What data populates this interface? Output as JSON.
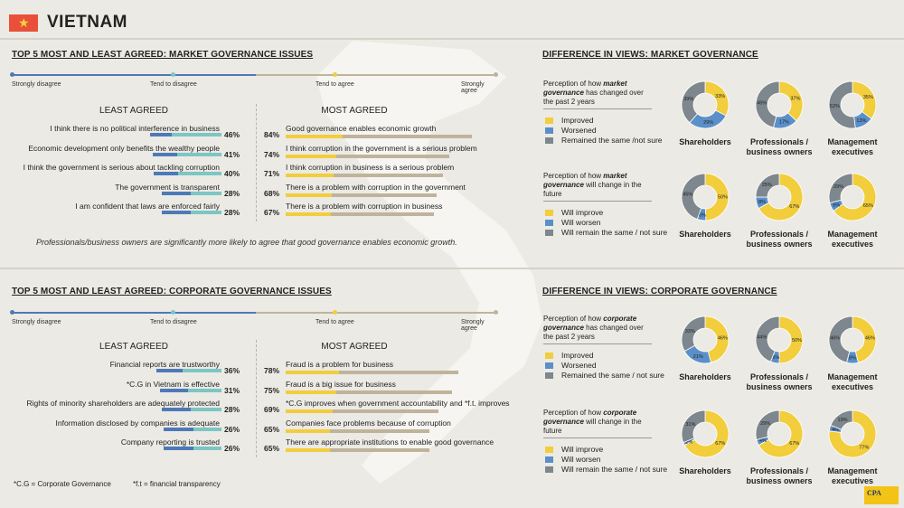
{
  "country": "VIETNAM",
  "colors": {
    "yellow": "#f2cd3c",
    "blue": "#5b8fc9",
    "grey": "#7d878d",
    "bar_teal": "#7cc6c4",
    "bar_tan": "#bfb49b",
    "bar_blue": "#4e79b8",
    "flag": "#e8503a"
  },
  "scale": [
    "Strongly disagree",
    "Tend to disagree",
    "Tend to agree",
    "Strongly agree"
  ],
  "market": {
    "title": "TOP 5 MOST AND LEAST AGREED: MARKET GOVERNANCE ISSUES",
    "least_head": "LEAST AGREED",
    "most_head": "MOST AGREED",
    "least": [
      {
        "label": "I think there is no political interference in business",
        "pct": "46%"
      },
      {
        "label": "Economic development only benefits the wealthy people",
        "pct": "41%"
      },
      {
        "label": "I think the government is serious about tackling corruption",
        "pct": "40%"
      },
      {
        "label": "The government is transparent",
        "pct": "28%"
      },
      {
        "label": "I am confident that laws are enforced fairly",
        "pct": "28%"
      }
    ],
    "most": [
      {
        "label": "Good governance enables economic growth",
        "pct": "84%"
      },
      {
        "label": "I think corruption in the government is a serious problem",
        "pct": "74%"
      },
      {
        "label": "I think corruption in business is a serious problem",
        "pct": "71%"
      },
      {
        "label": "There is a problem with corruption in the government",
        "pct": "68%"
      },
      {
        "label": "There is a problem with corruption in business",
        "pct": "67%"
      }
    ],
    "note": "Professionals/business owners are significantly more likely to agree that good governance enables economic growth."
  },
  "corporate": {
    "title": "TOP 5 MOST AND LEAST AGREED: CORPORATE GOVERNANCE ISSUES",
    "least_head": "LEAST AGREED",
    "most_head": "MOST AGREED",
    "least": [
      {
        "label": "Financial reports are trustworthy",
        "pct": "36%"
      },
      {
        "label": "*C.G in Vietnam is effective",
        "pct": "31%"
      },
      {
        "label": "Rights of minority shareholders are adequately protected",
        "pct": "28%"
      },
      {
        "label": "Information disclosed by companies is adequate",
        "pct": "26%"
      },
      {
        "label": "Company reporting is trusted",
        "pct": "26%"
      }
    ],
    "most": [
      {
        "label": "Fraud is a problem for business",
        "pct": "78%"
      },
      {
        "label": "Fraud is a big issue for business",
        "pct": "75%"
      },
      {
        "label": "*C.G improves when government accountability and *f.t. improves",
        "pct": "69%"
      },
      {
        "label": "Companies face problems because of corruption",
        "pct": "65%"
      },
      {
        "label": "There are appropriate institutions to enable good governance",
        "pct": "65%"
      }
    ]
  },
  "footnotes": [
    "*C.G = Corporate Governance",
    "*f.t = financial transparency"
  ],
  "diff_market_title": "DIFFERENCE IN VIEWS: MARKET GOVERNANCE",
  "diff_corporate_title": "DIFFERENCE IN VIEWS: CORPORATE GOVERNANCE",
  "groups": [
    "Shareholders",
    "Professionals / business owners",
    "Management executives"
  ],
  "donut_panels": [
    {
      "perception": [
        "Perception of how",
        "market governance",
        "has changed over the past 2 years"
      ],
      "legend": [
        "Improved",
        "Worsened",
        "Remained the same /not sure"
      ]
    },
    {
      "perception": [
        "Perception of how",
        "market governance",
        "will change in the future"
      ],
      "legend": [
        "Will improve",
        "Will worsen",
        "Will remain the same / not sure"
      ]
    },
    {
      "perception": [
        "Perception of how",
        "corporate governance",
        "has changed over the past 2 years"
      ],
      "legend": [
        "Improved",
        "Worsened",
        "Remained the same / not sure"
      ]
    },
    {
      "perception": [
        "Perception of how",
        "corporate governance",
        "will change in the future"
      ],
      "legend": [
        "Will improve",
        "Will worsen",
        "Will remain the same / not sure"
      ]
    }
  ],
  "chart_data": [
    {
      "type": "bar",
      "title": "TOP 5 MOST AND LEAST AGREED: MARKET GOVERNANCE ISSUES",
      "series": [
        {
          "name": "LEAST AGREED",
          "categories": [
            "I think there is no political interference in business",
            "Economic development only benefits the wealthy people",
            "I think the government is serious about tackling corruption",
            "The government is transparent",
            "I am confident that laws are enforced fairly"
          ],
          "values": [
            46,
            41,
            40,
            28,
            28
          ]
        },
        {
          "name": "MOST AGREED",
          "categories": [
            "Good governance enables economic growth",
            "I think corruption in the government is a serious problem",
            "I think corruption in business is a serious problem",
            "There is a problem with corruption in the government",
            "There is a problem with corruption in business"
          ],
          "values": [
            84,
            74,
            71,
            68,
            67
          ]
        }
      ]
    },
    {
      "type": "bar",
      "title": "TOP 5 MOST AND LEAST AGREED: CORPORATE GOVERNANCE ISSUES",
      "series": [
        {
          "name": "LEAST AGREED",
          "categories": [
            "Financial reports are trustworthy",
            "*C.G in Vietnam is effective",
            "Rights of minority shareholders are adequately protected",
            "Information disclosed by companies is adequate",
            "Company reporting is trusted"
          ],
          "values": [
            36,
            31,
            28,
            26,
            26
          ]
        },
        {
          "name": "MOST AGREED",
          "categories": [
            "Fraud is a problem for business",
            "Fraud is a big issue for business",
            "*C.G improves when government accountability and *f.t. improves",
            "Companies face problems because of corruption",
            "There are appropriate institutions to enable good governance"
          ],
          "values": [
            78,
            75,
            69,
            65,
            65
          ]
        }
      ]
    },
    {
      "type": "pie",
      "title": "DIFFERENCE IN VIEWS: MARKET GOVERNANCE",
      "panels": [
        {
          "perception": "has changed over the past 2 years",
          "groups": [
            {
              "name": "Shareholders",
              "improved": 33,
              "worsened": 29,
              "same": 39
            },
            {
              "name": "Professionals / business owners",
              "improved": 37,
              "worsened": 17,
              "same": 46
            },
            {
              "name": "Management executives",
              "improved": 35,
              "worsened": 13,
              "same": 52
            }
          ]
        },
        {
          "perception": "will change in the future",
          "groups": [
            {
              "name": "Shareholders",
              "improved": 50,
              "worsened": 6,
              "same": 45
            },
            {
              "name": "Professionals / business owners",
              "improved": 67,
              "worsened": 8,
              "same": 25
            },
            {
              "name": "Management executives",
              "improved": 65,
              "worsened": 6,
              "same": 29
            }
          ]
        }
      ]
    },
    {
      "type": "pie",
      "title": "DIFFERENCE IN VIEWS: CORPORATE GOVERNANCE",
      "panels": [
        {
          "perception": "has changed over the past 2 years",
          "groups": [
            {
              "name": "Shareholders",
              "improved": 46,
              "worsened": 21,
              "same": 33
            },
            {
              "name": "Professionals / business owners",
              "improved": 50,
              "worsened": 6,
              "same": 44
            },
            {
              "name": "Management executives",
              "improved": 46,
              "worsened": 8,
              "same": 46
            }
          ]
        },
        {
          "perception": "will change in the future",
          "groups": [
            {
              "name": "Shareholders",
              "improved": 67,
              "worsened": 2,
              "same": 31
            },
            {
              "name": "Professionals / business owners",
              "improved": 67,
              "worsened": 4,
              "same": 29
            },
            {
              "name": "Management executives",
              "improved": 77,
              "worsened": 4,
              "same": 19
            }
          ]
        }
      ]
    }
  ]
}
